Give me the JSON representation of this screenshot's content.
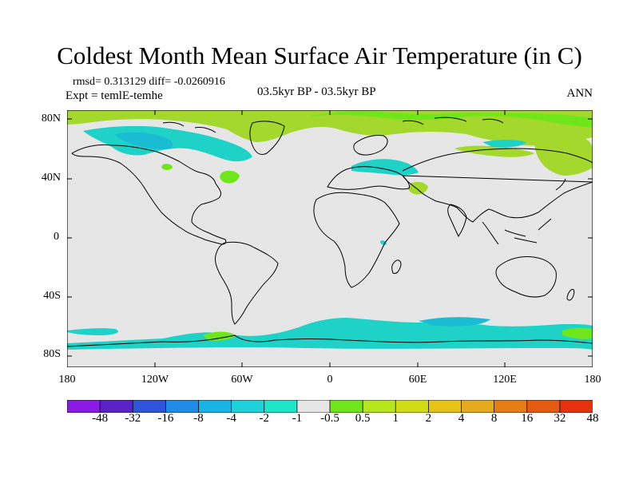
{
  "title": "Coldest Month Mean Surface Air Temperature (in C)",
  "stats": "rmsd= 0.313129  diff= -0.0260916",
  "experiment": "Expt = temlE-temhe",
  "period": "03.5kyr BP - 03.5kyr BP",
  "season": "ANN",
  "lat_labels": [
    "80N",
    "40N",
    "0",
    "40S",
    "80S"
  ],
  "lon_labels": [
    "180",
    "120W",
    "60W",
    "0",
    "60E",
    "120E",
    "180"
  ],
  "colorbar": {
    "colors": [
      "#8a1be6",
      "#5a23c8",
      "#2d56dc",
      "#1e8ce6",
      "#19b2e6",
      "#1ed2dc",
      "#1ee6c8",
      "#e6e6e6",
      "#6ee619",
      "#b4e619",
      "#d2dc14",
      "#e6c314",
      "#e6aa1e",
      "#e67d14",
      "#e65a0f",
      "#e6320a"
    ],
    "labels": [
      "-48",
      "-32",
      "-16",
      "-8",
      "-4",
      "-2",
      "-1",
      "-0.5",
      "0.5",
      "1",
      "2",
      "4",
      "8",
      "16",
      "32",
      "48"
    ]
  }
}
